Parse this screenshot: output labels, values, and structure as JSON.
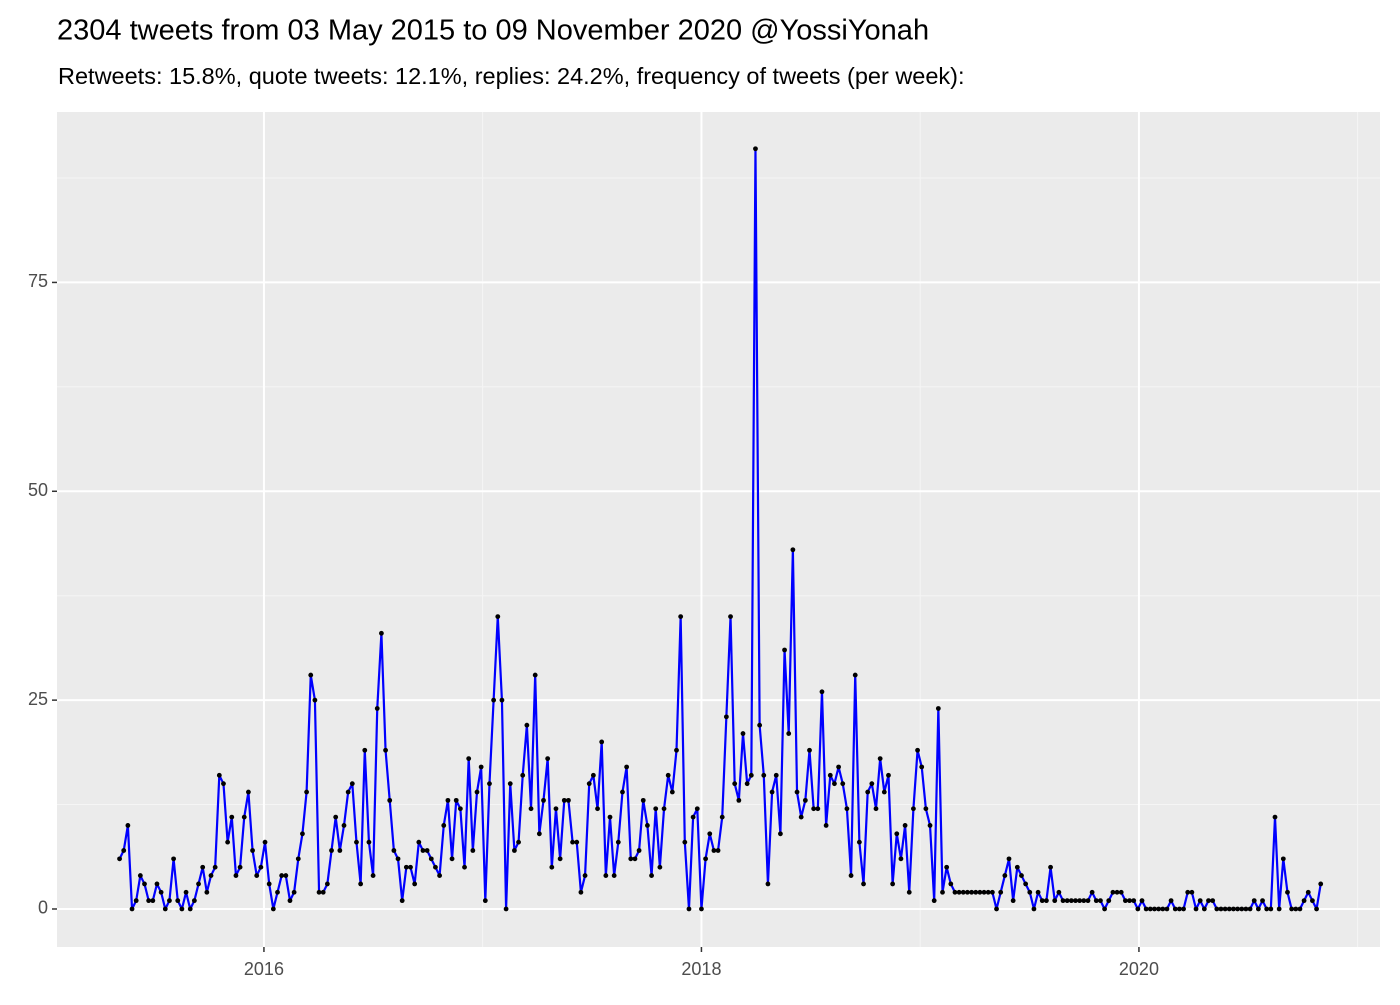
{
  "chart_data": {
    "type": "line",
    "title": "2304 tweets from 03 May 2015 to 09 November 2020 @YossiYonah",
    "subtitle": "Retweets: 15.8%, quote tweets: 12.1%, replies: 24.2%, frequency of tweets (per week):",
    "x": [
      2015.34,
      2015.359,
      2015.378,
      2015.397,
      2015.416,
      2015.435,
      2015.454,
      2015.473,
      2015.492,
      2015.511,
      2015.53,
      2015.549,
      2015.568,
      2015.587,
      2015.606,
      2015.625,
      2015.644,
      2015.663,
      2015.682,
      2015.701,
      2015.72,
      2015.739,
      2015.758,
      2015.777,
      2015.796,
      2015.815,
      2015.834,
      2015.853,
      2015.872,
      2015.891,
      2015.91,
      2015.929,
      2015.948,
      2015.967,
      2015.986,
      2016.005,
      2016.024,
      2016.043,
      2016.062,
      2016.081,
      2016.1,
      2016.119,
      2016.138,
      2016.157,
      2016.176,
      2016.195,
      2016.214,
      2016.233,
      2016.252,
      2016.271,
      2016.29,
      2016.309,
      2016.328,
      2016.347,
      2016.366,
      2016.385,
      2016.404,
      2016.423,
      2016.442,
      2016.461,
      2016.48,
      2016.499,
      2016.518,
      2016.537,
      2016.556,
      2016.575,
      2016.594,
      2016.613,
      2016.632,
      2016.651,
      2016.67,
      2016.689,
      2016.708,
      2016.727,
      2016.746,
      2016.765,
      2016.784,
      2016.803,
      2016.822,
      2016.841,
      2016.86,
      2016.879,
      2016.898,
      2016.917,
      2016.936,
      2016.955,
      2016.974,
      2016.993,
      2017.012,
      2017.031,
      2017.05,
      2017.069,
      2017.088,
      2017.107,
      2017.126,
      2017.145,
      2017.164,
      2017.183,
      2017.202,
      2017.221,
      2017.24,
      2017.259,
      2017.278,
      2017.297,
      2017.316,
      2017.335,
      2017.354,
      2017.373,
      2017.392,
      2017.411,
      2017.43,
      2017.449,
      2017.468,
      2017.487,
      2017.506,
      2017.525,
      2017.544,
      2017.563,
      2017.582,
      2017.601,
      2017.62,
      2017.639,
      2017.658,
      2017.677,
      2017.696,
      2017.715,
      2017.734,
      2017.753,
      2017.772,
      2017.791,
      2017.81,
      2017.829,
      2017.848,
      2017.867,
      2017.886,
      2017.905,
      2017.924,
      2017.943,
      2017.962,
      2017.981,
      2018.0,
      2018.019,
      2018.038,
      2018.057,
      2018.076,
      2018.095,
      2018.114,
      2018.133,
      2018.152,
      2018.171,
      2018.19,
      2018.209,
      2018.228,
      2018.247,
      2018.266,
      2018.285,
      2018.304,
      2018.323,
      2018.342,
      2018.361,
      2018.38,
      2018.399,
      2018.418,
      2018.437,
      2018.456,
      2018.475,
      2018.494,
      2018.513,
      2018.532,
      2018.551,
      2018.57,
      2018.589,
      2018.608,
      2018.627,
      2018.646,
      2018.665,
      2018.684,
      2018.703,
      2018.722,
      2018.741,
      2018.76,
      2018.779,
      2018.798,
      2018.817,
      2018.836,
      2018.855,
      2018.874,
      2018.893,
      2018.912,
      2018.931,
      2018.95,
      2018.969,
      2018.988,
      2019.007,
      2019.026,
      2019.045,
      2019.064,
      2019.083,
      2019.102,
      2019.121,
      2019.14,
      2019.159,
      2019.178,
      2019.197,
      2019.216,
      2019.235,
      2019.254,
      2019.273,
      2019.292,
      2019.311,
      2019.33,
      2019.349,
      2019.368,
      2019.387,
      2019.406,
      2019.425,
      2019.444,
      2019.463,
      2019.482,
      2019.501,
      2019.52,
      2019.539,
      2019.558,
      2019.577,
      2019.596,
      2019.615,
      2019.634,
      2019.653,
      2019.672,
      2019.691,
      2019.71,
      2019.729,
      2019.748,
      2019.767,
      2019.786,
      2019.805,
      2019.824,
      2019.843,
      2019.862,
      2019.881,
      2019.9,
      2019.919,
      2019.938,
      2019.957,
      2019.976,
      2019.995,
      2020.014,
      2020.033,
      2020.052,
      2020.071,
      2020.09,
      2020.109,
      2020.128,
      2020.147,
      2020.166,
      2020.185,
      2020.204,
      2020.223,
      2020.242,
      2020.261,
      2020.28,
      2020.299,
      2020.318,
      2020.337,
      2020.356,
      2020.375,
      2020.394,
      2020.413,
      2020.432,
      2020.451,
      2020.47,
      2020.489,
      2020.508,
      2020.527,
      2020.546,
      2020.565,
      2020.584,
      2020.603,
      2020.622,
      2020.641,
      2020.66,
      2020.679,
      2020.698,
      2020.717,
      2020.736,
      2020.755,
      2020.774,
      2020.793,
      2020.812,
      2020.831
    ],
    "values": [
      6,
      7,
      10,
      0,
      1,
      4,
      3,
      1,
      1,
      3,
      2,
      0,
      1,
      6,
      1,
      0,
      2,
      0,
      1,
      3,
      5,
      2,
      4,
      5,
      16,
      15,
      8,
      11,
      4,
      5,
      11,
      14,
      7,
      4,
      5,
      8,
      3,
      0,
      2,
      4,
      4,
      1,
      2,
      6,
      9,
      14,
      28,
      25,
      2,
      2,
      3,
      7,
      11,
      7,
      10,
      14,
      15,
      8,
      3,
      19,
      8,
      4,
      24,
      33,
      19,
      13,
      7,
      6,
      1,
      5,
      5,
      3,
      8,
      7,
      7,
      6,
      5,
      4,
      10,
      13,
      6,
      13,
      12,
      5,
      18,
      7,
      14,
      17,
      1,
      15,
      25,
      35,
      25,
      0,
      15,
      7,
      8,
      16,
      22,
      12,
      28,
      9,
      13,
      18,
      5,
      12,
      6,
      13,
      13,
      8,
      8,
      2,
      4,
      15,
      16,
      12,
      20,
      4,
      11,
      4,
      8,
      14,
      17,
      6,
      6,
      7,
      13,
      10,
      4,
      12,
      5,
      12,
      16,
      14,
      19,
      35,
      8,
      0,
      11,
      12,
      0,
      6,
      9,
      7,
      7,
      11,
      23,
      35,
      15,
      13,
      21,
      15,
      16,
      91,
      22,
      16,
      3,
      14,
      16,
      9,
      31,
      21,
      43,
      14,
      11,
      13,
      19,
      12,
      12,
      26,
      10,
      16,
      15,
      17,
      15,
      12,
      4,
      28,
      8,
      3,
      14,
      15,
      12,
      18,
      14,
      16,
      3,
      9,
      6,
      10,
      2,
      12,
      19,
      17,
      12,
      10,
      1,
      24,
      2,
      5,
      3,
      2,
      2,
      2,
      2,
      2,
      2,
      2,
      2,
      2,
      2,
      0,
      2,
      4,
      6,
      1,
      5,
      4,
      3,
      2,
      0,
      2,
      1,
      1,
      5,
      1,
      2,
      1,
      1,
      1,
      1,
      1,
      1,
      1,
      2,
      1,
      1,
      0,
      1,
      2,
      2,
      2,
      1,
      1,
      1,
      0,
      1,
      0,
      0,
      0,
      0,
      0,
      0,
      1,
      0,
      0,
      0,
      2,
      2,
      0,
      1,
      0,
      1,
      1,
      0,
      0,
      0,
      0,
      0,
      0,
      0,
      0,
      0,
      1,
      0,
      1,
      0,
      0,
      11,
      0,
      6,
      2,
      0,
      0,
      0,
      1,
      2,
      1,
      0,
      3
    ],
    "color": "#0000ff",
    "marker_color": "#000000",
    "xlim": [
      2015.054,
      2021.102
    ],
    "xticks": [
      2016,
      2018,
      2020
    ],
    "ylim": [
      -4.55,
      95.4
    ],
    "yticks": [
      0,
      25,
      50,
      75
    ],
    "grid": true
  }
}
